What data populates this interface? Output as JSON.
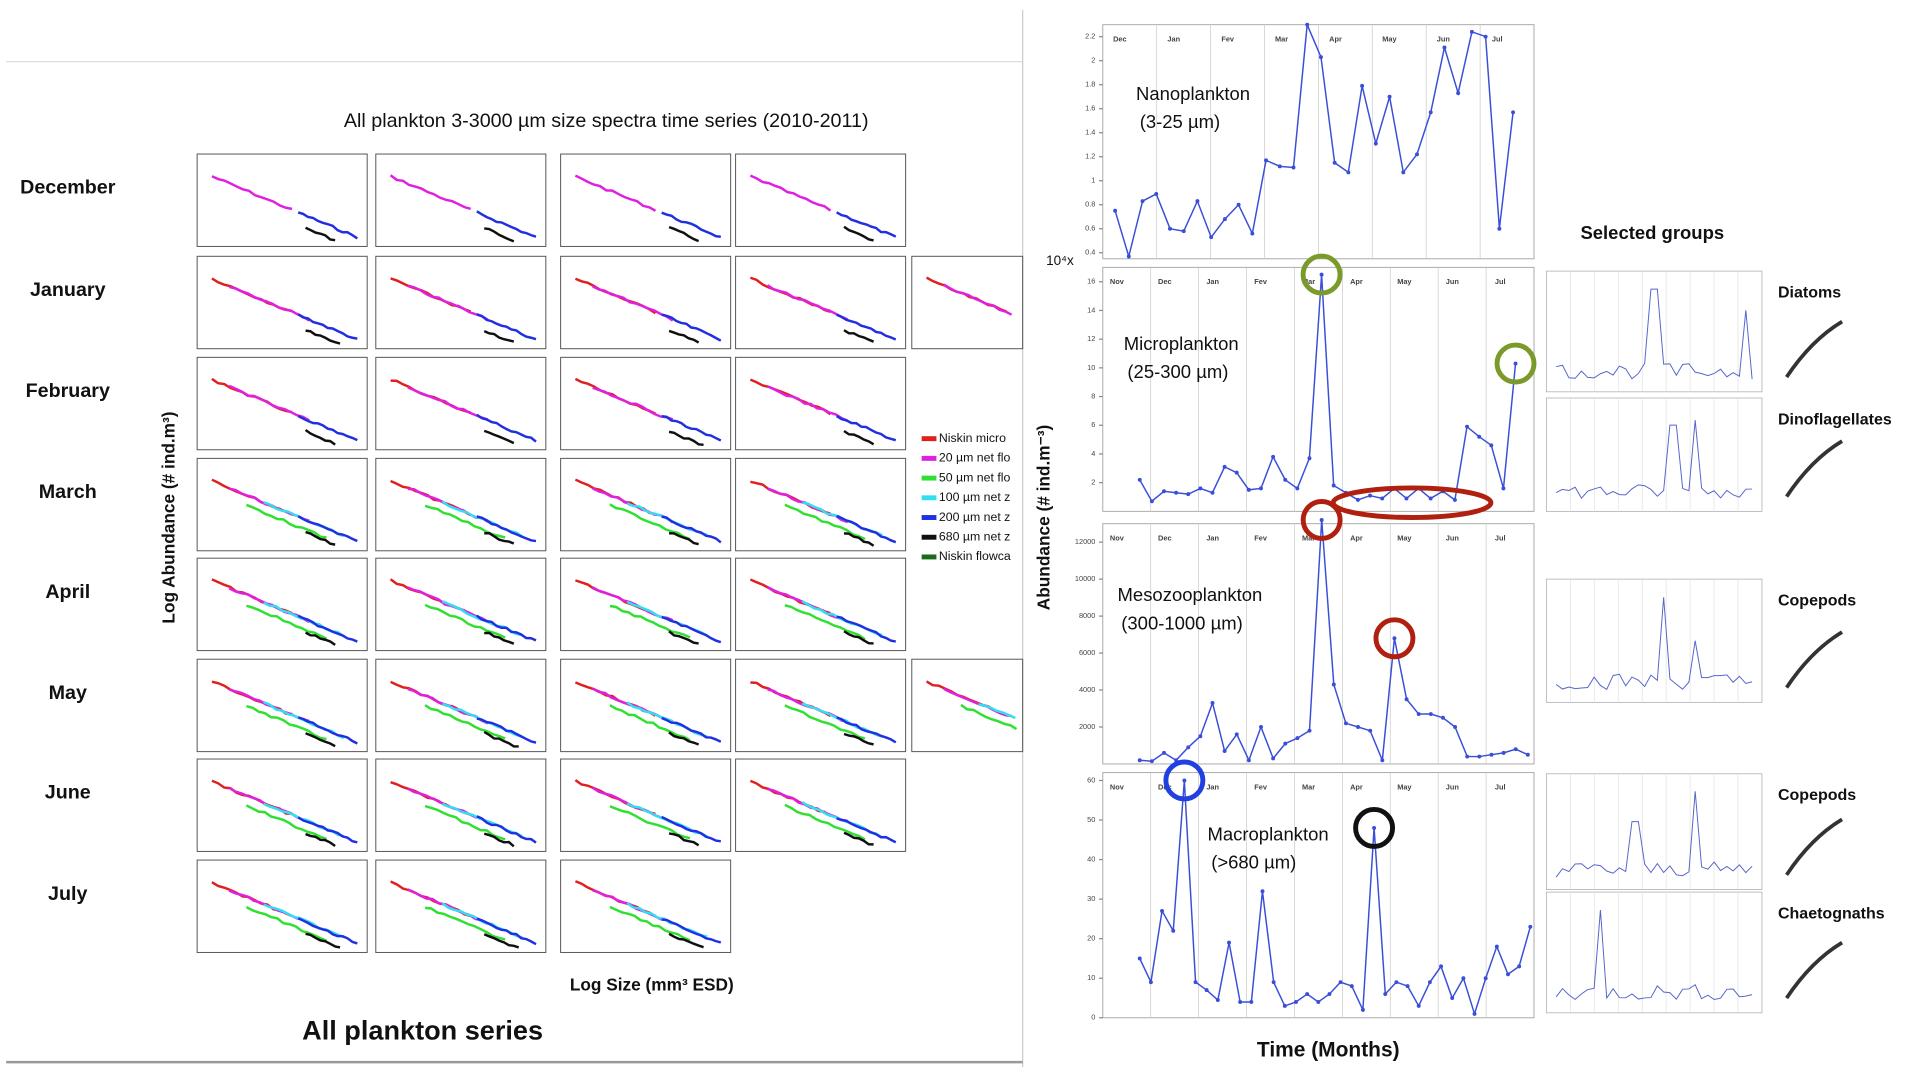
{
  "left": {
    "title": "All plankton 3-3000 µm size  spectra time series (2010-2011)",
    "months": [
      "December",
      "January",
      "February",
      "March",
      "April",
      "May",
      "June",
      "July"
    ],
    "y_label": "Log Abundance (# ind.m³)",
    "x_label": "Log Size (mm³ ESD)",
    "caption": "All plankton series",
    "legend": [
      {
        "name": "Niskin micro",
        "color": "#e02020"
      },
      {
        "name": "20 µm net flo",
        "color": "#e020e0"
      },
      {
        "name": "50 µm net flo",
        "color": "#30e030"
      },
      {
        "name": "100 µm net z",
        "color": "#30e0f0"
      },
      {
        "name": "200 µm net z",
        "color": "#2030e0"
      },
      {
        "name": "680 µm net z",
        "color": "#101010"
      },
      {
        "name": "Niskin flowca",
        "color": "#1a6a1a"
      }
    ]
  },
  "right": {
    "y_label": "Abundance (# ind.m⁻³)",
    "x_label": "Time (Months)",
    "multiplier": "10⁴x",
    "selected_title": "Selected groups",
    "groups": [
      "Diatoms",
      "Dinoflagellates",
      "Copepods",
      "Copepods",
      "Chaetognaths"
    ]
  },
  "chart_data": [
    {
      "type": "line",
      "title": "Nanoplankton",
      "subtitle": "(3-25 µm)",
      "color": "#3a4fd8",
      "months": [
        "Dec",
        "Jan",
        "Fev",
        "Mar",
        "Apr",
        "May",
        "Jun",
        "Jul"
      ],
      "values": [
        0.75,
        0.37,
        0.83,
        0.89,
        0.6,
        0.58,
        0.83,
        0.53,
        0.68,
        0.8,
        0.56,
        1.17,
        1.12,
        1.11,
        2.3,
        2.03,
        1.15,
        1.07,
        1.79,
        1.31,
        1.7,
        1.07,
        1.22,
        1.57,
        2.11,
        1.73,
        2.24,
        2.2,
        0.6,
        1.57
      ],
      "ylim": [
        0.35,
        2.3
      ],
      "yticks": [
        0.4,
        0.6,
        0.8,
        1,
        1.2,
        1.4,
        1.6,
        1.8,
        2,
        2.2
      ]
    },
    {
      "type": "line",
      "title": "Microplankton",
      "subtitle": "(25-300 µm)",
      "color": "#3a4fd8",
      "months": [
        "Nov",
        "Dec",
        "Jan",
        "Fev",
        "Mar",
        "Apr",
        "May",
        "Jun",
        "Jul"
      ],
      "values": [
        2.2,
        0.7,
        1.4,
        1.3,
        1.2,
        1.6,
        1.3,
        3.1,
        2.7,
        1.5,
        1.6,
        3.8,
        2.2,
        1.6,
        3.7,
        16.5,
        1.8,
        1.3,
        0.8,
        1.1,
        0.9,
        1.6,
        0.9,
        1.6,
        0.9,
        1.4,
        0.8,
        5.9,
        5.2,
        4.6,
        1.6,
        10.3
      ],
      "ylim": [
        0,
        17
      ],
      "yticks": [
        2,
        4,
        6,
        8,
        10,
        12,
        14,
        16
      ]
    },
    {
      "type": "line",
      "title": "Mesozooplankton",
      "subtitle": "(300-1000 µm)",
      "color": "#3a4fd8",
      "months": [
        "Nov",
        "Dec",
        "Jan",
        "Fev",
        "Mar",
        "Apr",
        "May",
        "Jun",
        "Jul"
      ],
      "values": [
        200,
        150,
        600,
        200,
        900,
        1500,
        3300,
        700,
        1600,
        200,
        2000,
        300,
        1100,
        1400,
        1800,
        13200,
        4300,
        2200,
        2000,
        1800,
        200,
        6800,
        3500,
        2700,
        2700,
        2500,
        2000,
        400,
        400,
        500,
        600,
        800,
        500
      ],
      "ylim": [
        0,
        13000
      ],
      "yticks": [
        2000,
        4000,
        6000,
        8000,
        10000,
        12000
      ]
    },
    {
      "type": "line",
      "title": "Macroplankton",
      "subtitle": "(>680 µm)",
      "color": "#3a4fd8",
      "months": [
        "Nov",
        "Dec",
        "Jan",
        "Fev",
        "Mar",
        "Apr",
        "May",
        "Jun",
        "Jul"
      ],
      "values": [
        15,
        9,
        27,
        22,
        60,
        9,
        7,
        4.5,
        19,
        4,
        4,
        32,
        9,
        3,
        4,
        6,
        4,
        6,
        9,
        8,
        2,
        48,
        6,
        9,
        8,
        3,
        9,
        13,
        5,
        10,
        1,
        10,
        18,
        11,
        13,
        23
      ],
      "ylim": [
        0,
        62
      ],
      "yticks": [
        0,
        10,
        20,
        30,
        40,
        50,
        60
      ]
    }
  ]
}
